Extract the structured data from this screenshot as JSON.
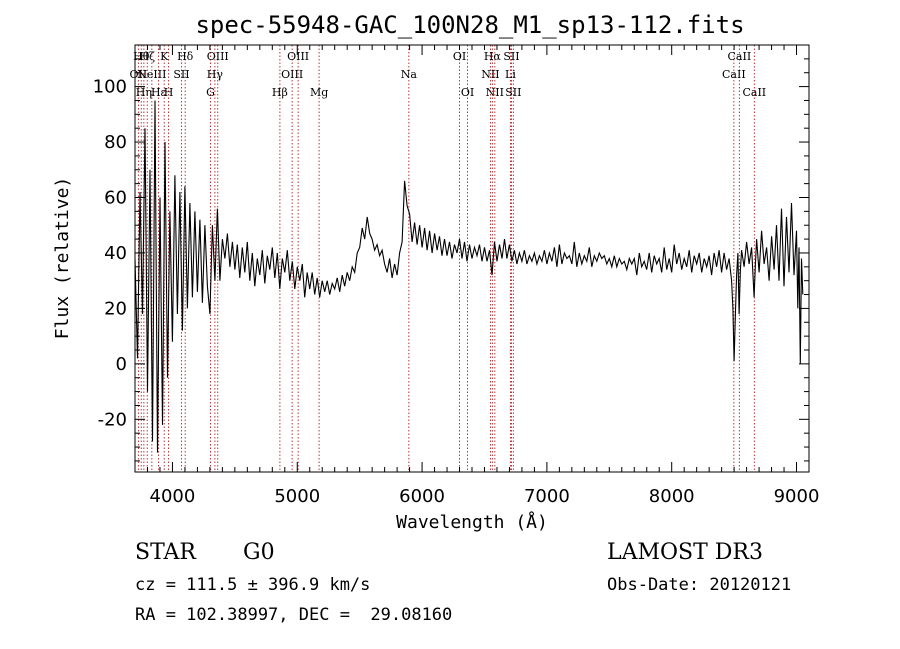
{
  "chart_data": {
    "type": "line",
    "title": "spec-55948-GAC_100N28_M1_sp13-112.fits",
    "xlabel": "Wavelength (Å)",
    "ylabel": "Flux (relative)",
    "xlim": [
      3700,
      9100
    ],
    "ylim": [
      -39,
      115
    ],
    "x_ticks": [
      4000,
      5000,
      6000,
      7000,
      8000,
      9000
    ],
    "y_ticks": [
      -20,
      0,
      20,
      40,
      60,
      80,
      100
    ],
    "grid": false,
    "line_color": "#000000",
    "marker_color": "#b22222",
    "lines": [
      {
        "name": "OII",
        "wave": 3727,
        "row": 1
      },
      {
        "name": "Hθ",
        "wave": 3750,
        "row": 0
      },
      {
        "name": "Hη",
        "wave": 3771,
        "row": 2
      },
      {
        "name": "Hζ",
        "wave": 3798,
        "row": 0
      },
      {
        "name": "NeIII",
        "wave": 3835,
        "row": 1
      },
      {
        "name": "Hε",
        "wave": 3889,
        "row": 2
      },
      {
        "name": "K",
        "wave": 3934,
        "row": 0
      },
      {
        "name": "H",
        "wave": 3969,
        "row": 2
      },
      {
        "name": "SII",
        "wave": 4072,
        "row": 1
      },
      {
        "name": "Hδ",
        "wave": 4102,
        "row": 0
      },
      {
        "name": "G",
        "wave": 4305,
        "row": 2
      },
      {
        "name": "Hγ",
        "wave": 4340,
        "row": 1
      },
      {
        "name": "OIII",
        "wave": 4363,
        "row": 0
      },
      {
        "name": "Hβ",
        "wave": 4861,
        "row": 2
      },
      {
        "name": "OIII",
        "wave": 4959,
        "row": 1
      },
      {
        "name": "OIII",
        "wave": 5007,
        "row": 0
      },
      {
        "name": "Mg",
        "wave": 5175,
        "row": 2
      },
      {
        "name": "Na",
        "wave": 5894,
        "row": 1
      },
      {
        "name": "OI",
        "wave": 6300,
        "row": 0
      },
      {
        "name": "OI",
        "wave": 6364,
        "row": 2
      },
      {
        "name": "NII",
        "wave": 6548,
        "row": 1
      },
      {
        "name": "Hα",
        "wave": 6563,
        "row": 0
      },
      {
        "name": "NII",
        "wave": 6583,
        "row": 2
      },
      {
        "name": "Li",
        "wave": 6708,
        "row": 1
      },
      {
        "name": "SII",
        "wave": 6716,
        "row": 0
      },
      {
        "name": "SII",
        "wave": 6731,
        "row": 2
      },
      {
        "name": "CaII",
        "wave": 8498,
        "row": 1
      },
      {
        "name": "CaII",
        "wave": 8542,
        "row": 0
      },
      {
        "name": "CaII",
        "wave": 8662,
        "row": 2
      }
    ],
    "spectrum": [
      [
        3700,
        38
      ],
      [
        3720,
        2
      ],
      [
        3740,
        62
      ],
      [
        3760,
        18
      ],
      [
        3780,
        85
      ],
      [
        3800,
        -10
      ],
      [
        3820,
        70
      ],
      [
        3840,
        -28
      ],
      [
        3860,
        95
      ],
      [
        3880,
        -32
      ],
      [
        3900,
        60
      ],
      [
        3920,
        -22
      ],
      [
        3940,
        80
      ],
      [
        3960,
        -5
      ],
      [
        3980,
        55
      ],
      [
        4000,
        8
      ],
      [
        4020,
        68
      ],
      [
        4040,
        18
      ],
      [
        4060,
        62
      ],
      [
        4080,
        12
      ],
      [
        4100,
        64
      ],
      [
        4120,
        20
      ],
      [
        4140,
        58
      ],
      [
        4160,
        24
      ],
      [
        4180,
        55
      ],
      [
        4200,
        26
      ],
      [
        4220,
        52
      ],
      [
        4240,
        22
      ],
      [
        4260,
        50
      ],
      [
        4280,
        28
      ],
      [
        4300,
        18
      ],
      [
        4320,
        50
      ],
      [
        4340,
        30
      ],
      [
        4360,
        56
      ],
      [
        4380,
        30
      ],
      [
        4400,
        45
      ],
      [
        4420,
        38
      ],
      [
        4440,
        47
      ],
      [
        4460,
        35
      ],
      [
        4480,
        44
      ],
      [
        4500,
        34
      ],
      [
        4520,
        43
      ],
      [
        4540,
        31
      ],
      [
        4560,
        42
      ],
      [
        4580,
        33
      ],
      [
        4600,
        44
      ],
      [
        4620,
        30
      ],
      [
        4640,
        40
      ],
      [
        4660,
        28
      ],
      [
        4680,
        38
      ],
      [
        4700,
        32
      ],
      [
        4720,
        41
      ],
      [
        4740,
        29
      ],
      [
        4760,
        39
      ],
      [
        4780,
        34
      ],
      [
        4800,
        42
      ],
      [
        4820,
        31
      ],
      [
        4840,
        40
      ],
      [
        4860,
        27
      ],
      [
        4880,
        38
      ],
      [
        4900,
        33
      ],
      [
        4920,
        41
      ],
      [
        4940,
        30
      ],
      [
        4960,
        37
      ],
      [
        4980,
        27
      ],
      [
        5000,
        35
      ],
      [
        5020,
        30
      ],
      [
        5040,
        36
      ],
      [
        5060,
        24
      ],
      [
        5080,
        33
      ],
      [
        5100,
        27
      ],
      [
        5120,
        33
      ],
      [
        5140,
        25
      ],
      [
        5160,
        31
      ],
      [
        5180,
        24
      ],
      [
        5200,
        30
      ],
      [
        5220,
        26
      ],
      [
        5240,
        30
      ],
      [
        5260,
        25
      ],
      [
        5280,
        29
      ],
      [
        5300,
        27
      ],
      [
        5320,
        31
      ],
      [
        5340,
        26
      ],
      [
        5360,
        32
      ],
      [
        5380,
        28
      ],
      [
        5400,
        33
      ],
      [
        5420,
        30
      ],
      [
        5440,
        35
      ],
      [
        5460,
        33
      ],
      [
        5480,
        40
      ],
      [
        5500,
        42
      ],
      [
        5520,
        49
      ],
      [
        5540,
        45
      ],
      [
        5560,
        53
      ],
      [
        5580,
        47
      ],
      [
        5600,
        45
      ],
      [
        5620,
        41
      ],
      [
        5640,
        43
      ],
      [
        5660,
        39
      ],
      [
        5680,
        41
      ],
      [
        5700,
        36
      ],
      [
        5720,
        33
      ],
      [
        5740,
        38
      ],
      [
        5760,
        31
      ],
      [
        5780,
        36
      ],
      [
        5800,
        32
      ],
      [
        5820,
        40
      ],
      [
        5840,
        44
      ],
      [
        5860,
        66
      ],
      [
        5880,
        57
      ],
      [
        5900,
        54
      ],
      [
        5920,
        44
      ],
      [
        5940,
        51
      ],
      [
        5960,
        43
      ],
      [
        5980,
        50
      ],
      [
        6000,
        42
      ],
      [
        6020,
        49
      ],
      [
        6040,
        41
      ],
      [
        6060,
        48
      ],
      [
        6080,
        40
      ],
      [
        6100,
        47
      ],
      [
        6120,
        41
      ],
      [
        6140,
        46
      ],
      [
        6160,
        39
      ],
      [
        6180,
        45
      ],
      [
        6200,
        39
      ],
      [
        6220,
        44
      ],
      [
        6240,
        38
      ],
      [
        6260,
        43
      ],
      [
        6280,
        40
      ],
      [
        6300,
        45
      ],
      [
        6320,
        38
      ],
      [
        6340,
        44
      ],
      [
        6360,
        37
      ],
      [
        6380,
        43
      ],
      [
        6400,
        38
      ],
      [
        6420,
        42
      ],
      [
        6440,
        39
      ],
      [
        6460,
        43
      ],
      [
        6480,
        37
      ],
      [
        6500,
        42
      ],
      [
        6520,
        37
      ],
      [
        6540,
        41
      ],
      [
        6560,
        32
      ],
      [
        6580,
        44
      ],
      [
        6600,
        37
      ],
      [
        6620,
        43
      ],
      [
        6640,
        38
      ],
      [
        6660,
        45
      ],
      [
        6680,
        38
      ],
      [
        6700,
        43
      ],
      [
        6720,
        37
      ],
      [
        6740,
        41
      ],
      [
        6760,
        36
      ],
      [
        6780,
        40
      ],
      [
        6800,
        37
      ],
      [
        6820,
        41
      ],
      [
        6840,
        36
      ],
      [
        6860,
        39
      ],
      [
        6880,
        37
      ],
      [
        6900,
        40
      ],
      [
        6920,
        36
      ],
      [
        6940,
        39
      ],
      [
        6960,
        37
      ],
      [
        6980,
        41
      ],
      [
        7000,
        36
      ],
      [
        7020,
        40
      ],
      [
        7040,
        37
      ],
      [
        7060,
        42
      ],
      [
        7080,
        35
      ],
      [
        7100,
        43
      ],
      [
        7120,
        36
      ],
      [
        7140,
        40
      ],
      [
        7160,
        38
      ],
      [
        7180,
        39
      ],
      [
        7200,
        36
      ],
      [
        7220,
        44
      ],
      [
        7240,
        35
      ],
      [
        7260,
        40
      ],
      [
        7280,
        36
      ],
      [
        7300,
        39
      ],
      [
        7320,
        37
      ],
      [
        7340,
        42
      ],
      [
        7360,
        35
      ],
      [
        7380,
        39
      ],
      [
        7400,
        37
      ],
      [
        7420,
        40
      ],
      [
        7440,
        38
      ],
      [
        7460,
        39
      ],
      [
        7480,
        36
      ],
      [
        7500,
        38
      ],
      [
        7520,
        35
      ],
      [
        7540,
        39
      ],
      [
        7560,
        35
      ],
      [
        7580,
        38
      ],
      [
        7600,
        36
      ],
      [
        7620,
        37
      ],
      [
        7640,
        34
      ],
      [
        7660,
        38
      ],
      [
        7680,
        36
      ],
      [
        7700,
        38
      ],
      [
        7720,
        32
      ],
      [
        7740,
        40
      ],
      [
        7760,
        35
      ],
      [
        7780,
        37
      ],
      [
        7800,
        34
      ],
      [
        7820,
        40
      ],
      [
        7840,
        33
      ],
      [
        7860,
        39
      ],
      [
        7880,
        36
      ],
      [
        7900,
        38
      ],
      [
        7920,
        33
      ],
      [
        7940,
        42
      ],
      [
        7960,
        34
      ],
      [
        7980,
        38
      ],
      [
        8000,
        33
      ],
      [
        8020,
        43
      ],
      [
        8040,
        36
      ],
      [
        8060,
        40
      ],
      [
        8080,
        34
      ],
      [
        8100,
        38
      ],
      [
        8120,
        35
      ],
      [
        8140,
        41
      ],
      [
        8160,
        33
      ],
      [
        8180,
        39
      ],
      [
        8200,
        36
      ],
      [
        8220,
        40
      ],
      [
        8240,
        33
      ],
      [
        8260,
        38
      ],
      [
        8280,
        35
      ],
      [
        8300,
        39
      ],
      [
        8320,
        32
      ],
      [
        8340,
        40
      ],
      [
        8360,
        35
      ],
      [
        8380,
        41
      ],
      [
        8400,
        33
      ],
      [
        8420,
        40
      ],
      [
        8440,
        34
      ],
      [
        8460,
        38
      ],
      [
        8480,
        30
      ],
      [
        8490,
        20
      ],
      [
        8500,
        1
      ],
      [
        8510,
        18
      ],
      [
        8520,
        32
      ],
      [
        8530,
        40
      ],
      [
        8540,
        18
      ],
      [
        8550,
        34
      ],
      [
        8560,
        41
      ],
      [
        8580,
        35
      ],
      [
        8600,
        44
      ],
      [
        8620,
        36
      ],
      [
        8640,
        42
      ],
      [
        8660,
        24
      ],
      [
        8670,
        35
      ],
      [
        8680,
        45
      ],
      [
        8700,
        33
      ],
      [
        8720,
        48
      ],
      [
        8740,
        36
      ],
      [
        8760,
        42
      ],
      [
        8780,
        30
      ],
      [
        8800,
        46
      ],
      [
        8820,
        34
      ],
      [
        8840,
        50
      ],
      [
        8860,
        30
      ],
      [
        8880,
        56
      ],
      [
        8900,
        28
      ],
      [
        8920,
        53
      ],
      [
        8940,
        33
      ],
      [
        8960,
        58
      ],
      [
        8980,
        32
      ],
      [
        9000,
        48
      ],
      [
        9010,
        20
      ],
      [
        9020,
        42
      ],
      [
        9030,
        0
      ],
      [
        9040,
        38
      ],
      [
        9050,
        25
      ]
    ]
  },
  "info": {
    "object_type": "STAR",
    "subclass": "G0",
    "survey": "LAMOST DR3",
    "cz": "cz = 111.5 ± 396.9 km/s",
    "obs_date": "Obs-Date: 20120121",
    "coords": "RA = 102.38997, DEC =  29.08160"
  }
}
